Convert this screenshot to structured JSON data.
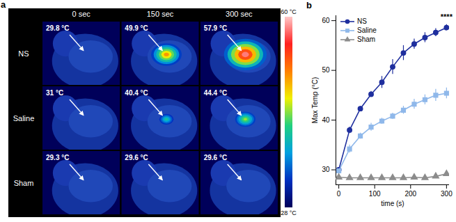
{
  "chart_data": [
    {
      "type": "thermal_image_grid",
      "panel": "a",
      "columns": [
        "0 sec",
        "150 sec",
        "300 sec"
      ],
      "rows": [
        "NS",
        "Saline",
        "Sham"
      ],
      "values": [
        [
          29.8,
          49.9,
          57.9
        ],
        [
          31,
          40.4,
          44.4
        ],
        [
          29.3,
          29.6,
          29.6
        ]
      ],
      "value_labels": [
        [
          "29.8 °C",
          "49.9 °C",
          "57.9 °C"
        ],
        [
          "31 °C",
          "40.4 °C",
          "44.4 °C"
        ],
        [
          "29.3 °C",
          "29.6 °C",
          "29.6 °C"
        ]
      ],
      "colorbar": {
        "range": [
          28,
          60
        ],
        "ticks": [
          {
            "value": 60,
            "label": "60 °C"
          },
          {
            "value": 28,
            "label": "28 °C"
          }
        ]
      }
    },
    {
      "type": "line",
      "panel": "b",
      "xlabel": "time (s)",
      "ylabel": "Max Temp (°C)",
      "x": [
        0,
        30,
        60,
        90,
        120,
        150,
        180,
        210,
        240,
        270,
        300
      ],
      "series": [
        {
          "name": "NS",
          "color": "#1f2f9e",
          "marker": "circle",
          "values": [
            30,
            38,
            42.3,
            45.2,
            47.6,
            50.7,
            53.5,
            55.3,
            56.6,
            57.6,
            58.6
          ],
          "errors": [
            0.4,
            0.6,
            0.5,
            0.6,
            1.2,
            1.5,
            1.5,
            1.0,
            1.0,
            0.8,
            0.6
          ]
        },
        {
          "name": "Saline",
          "color": "#8fb8ea",
          "marker": "square",
          "values": [
            29.8,
            34.2,
            36.8,
            38.6,
            39.8,
            40.8,
            42,
            43.2,
            44.1,
            45,
            45.4
          ],
          "errors": [
            0.4,
            0.8,
            0.6,
            0.8,
            0.6,
            0.6,
            0.8,
            1.0,
            1.0,
            1.2,
            1.1
          ]
        },
        {
          "name": "Sham",
          "color": "#8c8c8c",
          "marker": "triangle",
          "values": [
            28.5,
            28.4,
            28.4,
            28.4,
            28.4,
            28.4,
            28.4,
            28.5,
            28.4,
            28.7,
            29.2
          ],
          "errors": [
            0.3,
            0.2,
            0.2,
            0.2,
            0.2,
            0.2,
            0.2,
            0.2,
            0.2,
            0.3,
            0.3
          ]
        }
      ],
      "xlim": [
        -8,
        308
      ],
      "ylim": [
        27,
        61
      ],
      "xticks": [
        0,
        100,
        200,
        300
      ],
      "yticks": [
        30,
        40,
        50,
        60
      ],
      "legend": "top-left",
      "annotations": [
        {
          "text": "****",
          "x": 300,
          "y": 60.4
        }
      ]
    }
  ]
}
